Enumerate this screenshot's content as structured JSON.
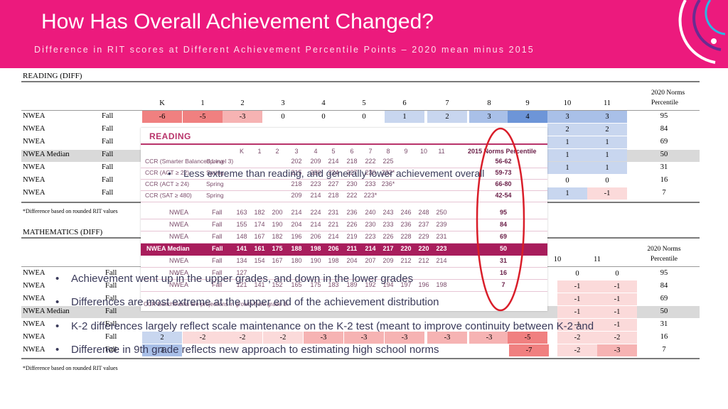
{
  "header": {
    "title": "How Has Overall Achievement Changed?",
    "subtitle": "Difference in RIT scores at Different Achievement Percentile Points – 2020 mean minus 2015",
    "colors": {
      "background": "#ec1a7d",
      "text": "#ffffff"
    }
  },
  "reading": {
    "label": "READING (DIFF)",
    "grade_headers": [
      "K",
      "1",
      "2",
      "3",
      "4",
      "5",
      "6",
      "7",
      "8",
      "9",
      "10",
      "11"
    ],
    "norms_header_line1": "2020 Norms",
    "norms_header_line2": "Percentile",
    "rows": [
      {
        "source": "NWEA",
        "season": "Fall",
        "diffs": [
          "-6",
          "-5",
          "-3",
          "0",
          "0",
          "0",
          "1",
          "2",
          "3",
          "4",
          "3",
          "3"
        ],
        "percentile": "95"
      },
      {
        "source": "NWEA",
        "season": "Fall",
        "right_diffs": [
          "2",
          "2"
        ],
        "percentile": "84"
      },
      {
        "source": "NWEA",
        "season": "Fall",
        "right_diffs": [
          "1",
          "1"
        ],
        "percentile": "69"
      },
      {
        "source": "NWEA Median",
        "season": "Fall",
        "right_diffs": [
          "1",
          "1"
        ],
        "percentile": "50"
      },
      {
        "source": "NWEA",
        "season": "Fall",
        "right_diffs": [
          "1",
          "1"
        ],
        "percentile": "31"
      },
      {
        "source": "NWEA",
        "season": "Fall",
        "right_diffs": [
          "0",
          "0"
        ],
        "percentile": "16"
      },
      {
        "source": "NWEA",
        "season": "Fall",
        "right_diffs": [
          "1",
          "-1"
        ],
        "percentile": "7"
      }
    ],
    "footnote": "*Difference based on rounded RIT values"
  },
  "math": {
    "label": "MATHEMATICS (DIFF)",
    "grade_headers": [
      "10",
      "11"
    ],
    "norms_header_line1": "2020 Norms",
    "norms_header_line2": "Percentile",
    "rows": [
      {
        "source": "NWEA",
        "season": "Fall",
        "right_diffs": [
          "0",
          "0"
        ],
        "percentile": "95"
      },
      {
        "source": "NWEA",
        "season": "Fall",
        "right_diffs": [
          "-1",
          "-1"
        ],
        "percentile": "84"
      },
      {
        "source": "NWEA",
        "season": "Fall",
        "right_diffs": [
          "-1",
          "-1"
        ],
        "percentile": "69"
      },
      {
        "source": "NWEA Median",
        "season": "Fall",
        "right_diffs": [
          "-1",
          "-1"
        ],
        "percentile": "50"
      },
      {
        "source": "NWEA",
        "season": "Fall",
        "right_diffs": [
          "-1",
          "-1"
        ],
        "percentile": "31"
      },
      {
        "source": "NWEA",
        "season": "Fall",
        "left_diffs": [
          "2",
          "-2",
          "-2",
          "-2",
          "-3",
          "-3",
          "-3",
          "-3",
          "-3",
          "-5"
        ],
        "right_diffs": [
          "-2",
          "-2"
        ],
        "percentile": "16"
      },
      {
        "source": "NWEA",
        "season": "Fall",
        "left_diffs": [
          "3"
        ],
        "right_diffs": [
          "-7",
          "-2",
          "-3"
        ],
        "percentile": "7"
      }
    ],
    "footnote": "*Difference based on rounded RIT values"
  },
  "overlay": {
    "title": "READING",
    "grade_headers": [
      "K",
      "1",
      "2",
      "3",
      "4",
      "5",
      "6",
      "7",
      "8",
      "9",
      "10",
      "11"
    ],
    "norms_header": "2015 Norms Percentile",
    "ccr_rows": [
      {
        "name": "CCR (Smarter Balanced Level 3)",
        "season": "Spring",
        "values": [
          "",
          "",
          "",
          "202",
          "209",
          "214",
          "218",
          "222",
          "225",
          "",
          "",
          ""
        ],
        "norms": "56-62"
      },
      {
        "name": "CCR (ACT ≥ 22)",
        "season": "Spring",
        "values": [
          "",
          "",
          "",
          "215",
          "220",
          "224",
          "227",
          "230",
          "232*",
          "",
          "",
          ""
        ],
        "norms": "59-73"
      },
      {
        "name": "CCR (ACT ≥ 24)",
        "season": "Spring",
        "values": [
          "",
          "",
          "",
          "218",
          "223",
          "227",
          "230",
          "233",
          "236*",
          "",
          "",
          ""
        ],
        "norms": "66-80"
      },
      {
        "name": "CCR (SAT ≥ 480)",
        "season": "Spring",
        "values": [
          "",
          "",
          "",
          "209",
          "214",
          "218",
          "222",
          "223*",
          "",
          "",
          "",
          ""
        ],
        "norms": "42-54"
      }
    ],
    "nwea_rows": [
      {
        "name": "NWEA",
        "season": "Fall",
        "values": [
          "163",
          "182",
          "200",
          "214",
          "224",
          "231",
          "236",
          "240",
          "243",
          "246",
          "248",
          "250"
        ],
        "norms": "95"
      },
      {
        "name": "NWEA",
        "season": "Fall",
        "values": [
          "155",
          "174",
          "190",
          "204",
          "214",
          "221",
          "226",
          "230",
          "233",
          "236",
          "237",
          "239"
        ],
        "norms": "84"
      },
      {
        "name": "NWEA",
        "season": "Fall",
        "values": [
          "148",
          "167",
          "182",
          "196",
          "206",
          "214",
          "219",
          "223",
          "226",
          "228",
          "229",
          "231"
        ],
        "norms": "69"
      },
      {
        "name": "NWEA Median",
        "season": "Fall",
        "values": [
          "141",
          "161",
          "175",
          "188",
          "198",
          "206",
          "211",
          "214",
          "217",
          "220",
          "220",
          "223"
        ],
        "norms": "50"
      },
      {
        "name": "NWEA",
        "season": "Fall",
        "values": [
          "134",
          "154",
          "167",
          "180",
          "190",
          "198",
          "204",
          "207",
          "209",
          "212",
          "212",
          "214"
        ],
        "norms": "31"
      },
      {
        "name": "NWEA",
        "season": "Fall",
        "values": [
          "127",
          "",
          "",
          "",
          "",
          "",
          "",
          "",
          "",
          "",
          "",
          ""
        ],
        "norms": "16"
      },
      {
        "name": "NWEA",
        "season": "Fall",
        "values": [
          "121",
          "141",
          "152",
          "165",
          "175",
          "183",
          "189",
          "192",
          "194",
          "197",
          "196",
          "198"
        ],
        "norms": "7"
      }
    ],
    "footnote": "CCR Benchmarks are projections in growth from grade 3."
  },
  "bullets": {
    "reading_note": "Less extreme than reading, and generally lower achievement overall",
    "items": [
      "Achievement went up in the upper grades, and down in the lower grades",
      "Differences are most extreme at the upper end of the achievement distribution",
      "K-2 differences largely reflect scale maintenance on the K-2 test (meant to improve continuity between K-2 and",
      "Difference in 9th grade reflects new approach to estimating high school norms"
    ]
  },
  "colors": {
    "neg_strong": "#f08080",
    "neg_mid": "#f6b3b3",
    "neg_light": "#fbdada",
    "pos_light": "#c8d6ef",
    "pos_mid": "#a9c0e8",
    "pos_strong": "#6d95d8",
    "overlay_accent": "#a81d5c",
    "ellipse": "#d91e2a"
  }
}
